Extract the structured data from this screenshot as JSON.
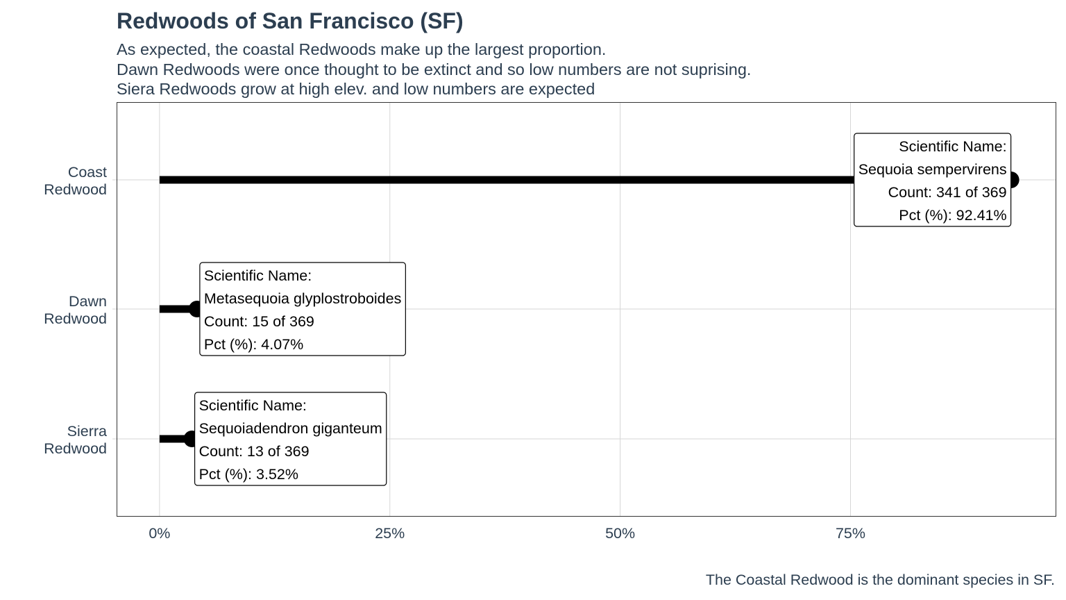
{
  "chart_data": {
    "type": "lollipop",
    "title": "Redwoods of San Francisco (SF)",
    "subtitle": [
      "As expected, the coastal Redwoods make up the largest proportion.",
      "Dawn Redwoods were once thought to be extinct and so low numbers are not suprising.",
      "Siera Redwoods grow at high elev. and low numbers are expected"
    ],
    "caption": "The Coastal Redwood is the dominant species in SF.",
    "xlim": [
      -0.0466,
      0.9726
    ],
    "xticks": [
      {
        "value": 0,
        "label": "0%"
      },
      {
        "value": 0.25,
        "label": "25%"
      },
      {
        "value": 0.5,
        "label": "50%"
      },
      {
        "value": 0.75,
        "label": "75%"
      }
    ],
    "grid": true,
    "categories": [
      {
        "label": [
          "Coast",
          "Redwood"
        ],
        "value": 0.9241,
        "annotation": [
          "Scientific Name:",
          "Sequoia sempervirens",
          "Count: 341 of 369",
          "Pct (%): 92.41%"
        ],
        "annotation_align": "right"
      },
      {
        "label": [
          "Dawn",
          "Redwood"
        ],
        "value": 0.0407,
        "annotation": [
          "Scientific Name:",
          "Metasequoia glyplostroboides",
          "Count: 15 of 369",
          "Pct (%): 4.07%"
        ],
        "annotation_align": "left"
      },
      {
        "label": [
          "Sierra",
          "Redwood"
        ],
        "value": 0.0352,
        "annotation": [
          "Scientific Name:",
          "Sequoiadendron giganteum",
          "Count: 13 of 369",
          "Pct (%): 3.52%"
        ],
        "annotation_align": "left"
      }
    ]
  }
}
